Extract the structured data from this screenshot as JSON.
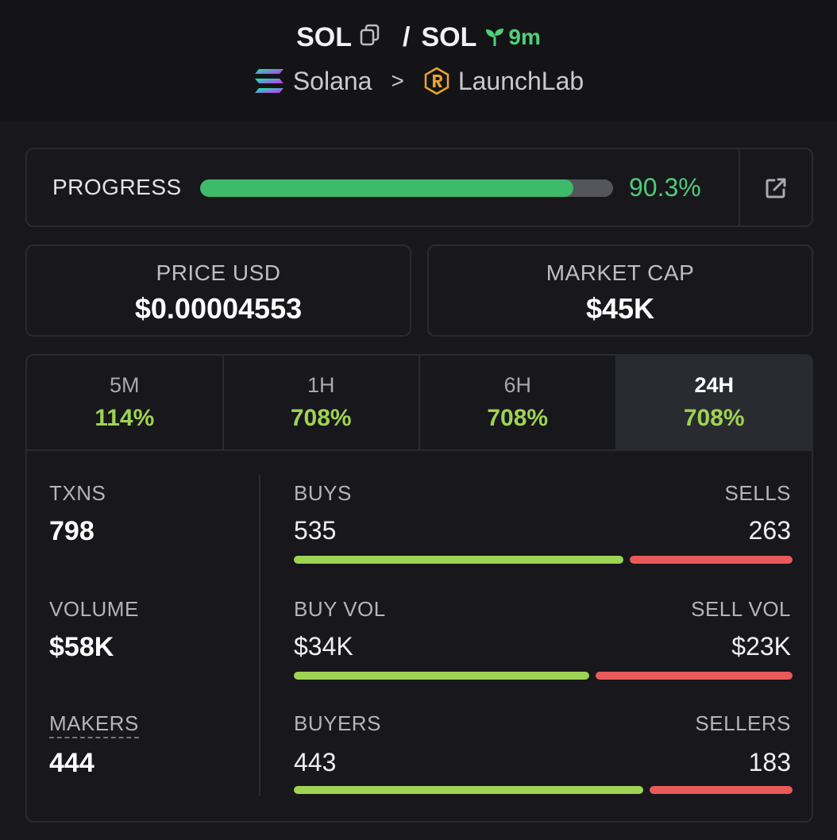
{
  "header": {
    "base_symbol": "SOL",
    "slash": "/",
    "quote_symbol": "SOL",
    "age": "9m",
    "chain": "Solana",
    "breadcrumb_sep": ">",
    "platform": "LaunchLab"
  },
  "progress": {
    "label": "PROGRESS",
    "value_text": "90.3%",
    "fraction": 0.903
  },
  "price": {
    "label": "PRICE USD",
    "value": "$0.00004553"
  },
  "market_cap": {
    "label": "MARKET CAP",
    "value": "$45K"
  },
  "tabs": [
    {
      "label": "5M",
      "change": "114%"
    },
    {
      "label": "1H",
      "change": "708%"
    },
    {
      "label": "6H",
      "change": "708%"
    },
    {
      "label": "24H",
      "change": "708%",
      "selected": true
    }
  ],
  "metrics": {
    "txns": {
      "label": "TXNS",
      "value": "798"
    },
    "volume": {
      "label": "VOLUME",
      "value": "$58K"
    },
    "makers": {
      "label": "MAKERS",
      "value": "444"
    }
  },
  "splits": {
    "buys": {
      "left_label": "BUYS",
      "left_value": "535",
      "right_label": "SELLS",
      "right_value": "263",
      "buy_fraction": 0.67
    },
    "vol": {
      "left_label": "BUY VOL",
      "left_value": "$34K",
      "right_label": "SELL VOL",
      "right_value": "$23K",
      "buy_fraction": 0.6
    },
    "buyers": {
      "left_label": "BUYERS",
      "left_value": "443",
      "right_label": "SELLERS",
      "right_value": "183",
      "buy_fraction": 0.71
    }
  },
  "colors": {
    "accent_green": "#4ecb78",
    "buy_green": "#9fd353",
    "sell_red": "#e85a5a",
    "background": "#17171c"
  },
  "icons": [
    "copy-icon",
    "seedling-icon",
    "solana-icon",
    "raydium-icon",
    "external-link-icon"
  ]
}
